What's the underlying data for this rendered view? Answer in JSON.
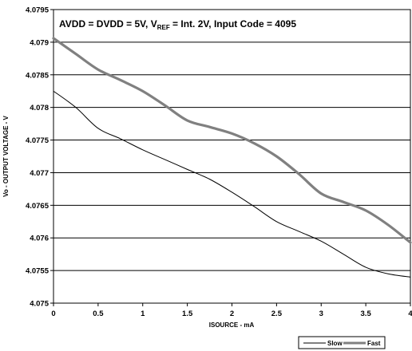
{
  "chart_data": {
    "type": "line",
    "annotation": {
      "prefix": "AVDD = DVDD = 5V, V",
      "subscript": "REF",
      "suffix": " = Int. 2V, Input Code = 4095"
    },
    "xlabel": "ISOURCE - mA",
    "ylabel": "Vo - OUTPUT VOLTAGE - V",
    "xlim": [
      0,
      4
    ],
    "ylim": [
      4.075,
      4.0795
    ],
    "x_ticks": [
      0,
      0.5,
      1,
      1.5,
      2,
      2.5,
      3,
      3.5,
      4
    ],
    "x_tick_labels": [
      "0",
      "0.5",
      "1",
      "1.5",
      "2",
      "2.5",
      "3",
      "3.5",
      "4"
    ],
    "y_ticks": [
      4.075,
      4.0755,
      4.076,
      4.0765,
      4.077,
      4.0775,
      4.078,
      4.0785,
      4.079,
      4.0795
    ],
    "y_tick_labels": [
      "4.075",
      "4.0755",
      "4.076",
      "4.0765",
      "4.077",
      "4.0775",
      "4.078",
      "4.0785",
      "4.079",
      "4.0795"
    ],
    "grid": "horizontal",
    "legend_position": "bottom-right",
    "series": [
      {
        "name": "Slow",
        "color": "#000000",
        "x": [
          0,
          0.25,
          0.5,
          0.75,
          1,
          1.25,
          1.5,
          1.75,
          2,
          2.25,
          2.5,
          2.75,
          3,
          3.25,
          3.5,
          3.75,
          4
        ],
        "y": [
          4.07825,
          4.078,
          4.07768,
          4.07752,
          4.07735,
          4.0772,
          4.07705,
          4.0769,
          4.0767,
          4.07648,
          4.07625,
          4.0761,
          4.07595,
          4.07575,
          4.07555,
          4.07545,
          4.0754
        ]
      },
      {
        "name": "Fast",
        "color": "#808080",
        "x": [
          0,
          0.25,
          0.5,
          0.75,
          1,
          1.25,
          1.5,
          1.75,
          2,
          2.25,
          2.5,
          2.75,
          3,
          3.25,
          3.5,
          3.75,
          4
        ],
        "y": [
          4.07906,
          4.07882,
          4.07858,
          4.07842,
          4.07825,
          4.07803,
          4.0778,
          4.0777,
          4.0776,
          4.07745,
          4.07725,
          4.07698,
          4.07668,
          4.07655,
          4.07642,
          4.0762,
          4.07593
        ]
      }
    ]
  }
}
